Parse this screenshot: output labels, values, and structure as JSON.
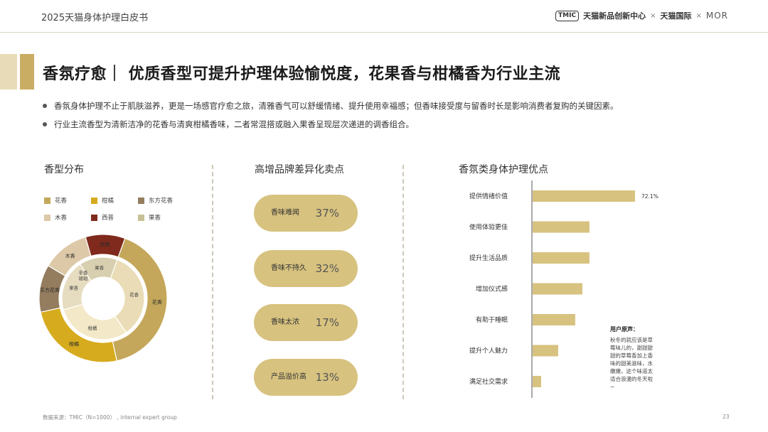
{
  "header": {
    "report_name": "2025天猫身体护理白皮书",
    "brand_tmic": "TMIC",
    "brand_tmic_text": "天猫新品创新中心",
    "times1": "×",
    "brand_intl": "天猫国际",
    "times2": "×",
    "brand_mor": "MOR"
  },
  "title": "香氛疗愈｜ 优质香型可提升护理体验愉悦度，花果香与柑橘香为行业主流",
  "bullets": [
    "香氛身体护理不止于肌肤滋养，更是一场感官疗愈之旅，清雅香气可以舒缓情绪、提升使用幸福感；但香味接受度与留香时长是影响消费者复购的关键因素。",
    "行业主流香型为清新洁净的花香与清爽柑橘香味，二者常混搭或融入果香呈现层次递进的调香组合。"
  ],
  "sections": {
    "scent": "香型分布",
    "selling": "高增品牌差异化卖点",
    "benefits": "香氛类身体护理优点"
  },
  "chart_data": [
    {
      "type": "pie",
      "title": "香型分布",
      "legend": [
        {
          "name": "花香",
          "color": "#c4a75a"
        },
        {
          "name": "柑橘",
          "color": "#d6ab1e"
        },
        {
          "name": "东方花香",
          "color": "#947c5f"
        },
        {
          "name": "木香",
          "color": "#ddc9a8"
        },
        {
          "name": "西普",
          "color": "#7f2a1c"
        },
        {
          "name": "果香",
          "color": "#c8c196"
        }
      ],
      "outer_ring": [
        {
          "name": "花香",
          "value": 41,
          "color": "#c4a75a"
        },
        {
          "name": "柑橘",
          "value": 25,
          "color": "#d6ab1e"
        },
        {
          "name": "东方花香",
          "value": 12,
          "color": "#947c5f"
        },
        {
          "name": "木香",
          "value": 12,
          "color": "#ddc9a8"
        },
        {
          "name": "西普",
          "value": 10,
          "color": "#7f2a1c"
        }
      ],
      "inner_ring": [
        {
          "name": "花香",
          "value": 35,
          "color": "#e9dcb6"
        },
        {
          "name": "柑橘",
          "value": 30,
          "color": "#f3e8c7"
        },
        {
          "name": "果香",
          "value": 20,
          "color": "#e6dcc0"
        },
        {
          "name": "果香",
          "value": 15,
          "color": "#d8cfb0"
        }
      ],
      "inner_label_extra": "辛香\n琥珀"
    },
    {
      "type": "table",
      "title": "高增品牌差异化卖点",
      "items": [
        {
          "label": "香味难闻",
          "value": "37%"
        },
        {
          "label": "香味不持久",
          "value": "32%"
        },
        {
          "label": "香味太浓",
          "value": "17%"
        },
        {
          "label": "产品溢价高",
          "value": "13%"
        }
      ]
    },
    {
      "type": "bar",
      "orientation": "horizontal",
      "title": "香氛类身体护理优点",
      "categories": [
        "提供情绪价值",
        "使用体验更佳",
        "提升生活品质",
        "增加仪式感",
        "有助于睡眠",
        "提升个人魅力",
        "满足社交需求"
      ],
      "values": [
        72.1,
        40,
        40,
        35,
        30,
        18,
        6
      ],
      "data_labels": [
        "72.1%",
        "",
        "",
        "",
        "",
        "",
        ""
      ],
      "xlim": [
        0,
        100
      ],
      "color": "#d7c27f"
    }
  ],
  "note": {
    "title": "用户原声：",
    "text": "秋冬的就应该是草莓味儿的，甜甜甜甜的草莓香加上香味的甜美滋味，水嫩嫩，这个味道太适合浪漫的冬天啦~"
  },
  "footer": {
    "source": "数据来源：TMIC（N=1000） , internal expert group",
    "page": "23"
  }
}
